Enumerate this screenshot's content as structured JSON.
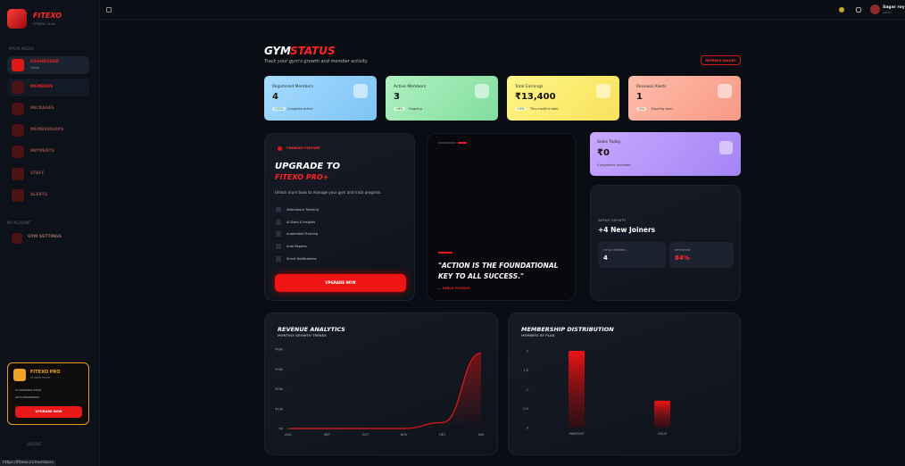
{
  "sidebar": {
    "brand": "FITEXO",
    "brand_sub": "FITNESS CLUB",
    "main_menu": "MAIN MENU",
    "nav": [
      {
        "label": "DASHBOARD",
        "sub": "Home"
      },
      {
        "label": "MEMBERS"
      },
      {
        "label": "PACKAGES"
      },
      {
        "label": "MEMBERSHIPS"
      },
      {
        "label": "PAYMENTS"
      },
      {
        "label": "STAFF"
      },
      {
        "label": "ALERTS"
      }
    ],
    "account": "MY ACCOUNT",
    "settings": "GYM SETTINGS",
    "promo": {
      "title": "FITEXO PRO",
      "sub": "Unlock more",
      "items": [
        "AI POWERED STATS",
        "AUTO REMINDERS"
      ],
      "button": "UPGRADE NOW"
    },
    "logout": "LOGOUT"
  },
  "topbar": {
    "user": "Sagar roy",
    "role": "Admin"
  },
  "header": {
    "title": "GYM",
    "title_accent": "STATUS",
    "subtitle": "Track your gym's growth and member activity.",
    "button": "REFRESH VALUES"
  },
  "stats": [
    {
      "label": "Registered Members",
      "value": "4",
      "change": "+12%",
      "note": "Complete active"
    },
    {
      "label": "Active Members",
      "value": "3",
      "change": "+8%",
      "note": "Ongoing"
    },
    {
      "label": "Total Earnings",
      "value": "₹13,400",
      "change": "+5%",
      "note": "This month's total"
    },
    {
      "label": "Renewal Alerts",
      "value": "1",
      "change": "-2%",
      "note": "Expiring soon"
    }
  ],
  "upgrade": {
    "badge": "PREMIUM FEATURE",
    "title": "UPGRADE TO",
    "accent": "FITEXO PRO+",
    "text": "Unlock more tools to manage your gym and track progress.",
    "features": [
      "Attendance Tracking",
      "AI Diets & Insights",
      "Automated Tracking",
      "Auto Reports",
      "Smart Notifications"
    ],
    "button": "UPGRADE NOW"
  },
  "quote": {
    "text": "\"ACTION IS THE FOUNDATIONAL KEY TO ALL SUCCESS.\"",
    "author": "— PABLO PICASSO"
  },
  "sales": {
    "label": "Sales Today",
    "value": "₹0",
    "note": "0 payments recorded"
  },
  "weekly": {
    "label": "WEEKLY GROWTH",
    "headline": "+4 New Joiners",
    "total_label": "TOTAL MEMBERS",
    "total_value": "4",
    "retention_label": "RETENTION",
    "retention_value": "84%"
  },
  "chart_data": [
    {
      "type": "line",
      "title": "REVENUE ANALYTICS",
      "subtitle": "MONTHLY GROWTH TRENDS",
      "categories": [
        "AUG",
        "SEP",
        "OCT",
        "NOV",
        "DEC",
        "JAN"
      ],
      "values": [
        0,
        0,
        0,
        0,
        3000,
        38000
      ],
      "color": "#e81818",
      "ylim": [
        0,
        40000
      ],
      "yticks": [
        {
          "value": 0,
          "label": "₹0"
        },
        {
          "value": 10000,
          "label": "₹10k"
        },
        {
          "value": 20000,
          "label": "₹20k"
        },
        {
          "value": 30000,
          "label": "₹30k"
        },
        {
          "value": 40000,
          "label": "₹40k"
        }
      ],
      "grid": false
    },
    {
      "type": "bar",
      "title": "MEMBERSHIP DISTRIBUTION",
      "subtitle": "MEMBERS BY PLAN",
      "categories": [
        "MONTHLY",
        "GOLD"
      ],
      "values": [
        2,
        0.7
      ],
      "color": "#e81818",
      "ylim": [
        0,
        2
      ],
      "yticks": [
        0,
        0.5,
        1,
        1.5,
        2
      ],
      "grid": false
    }
  ],
  "status_url": "https://fitexo.in/members"
}
